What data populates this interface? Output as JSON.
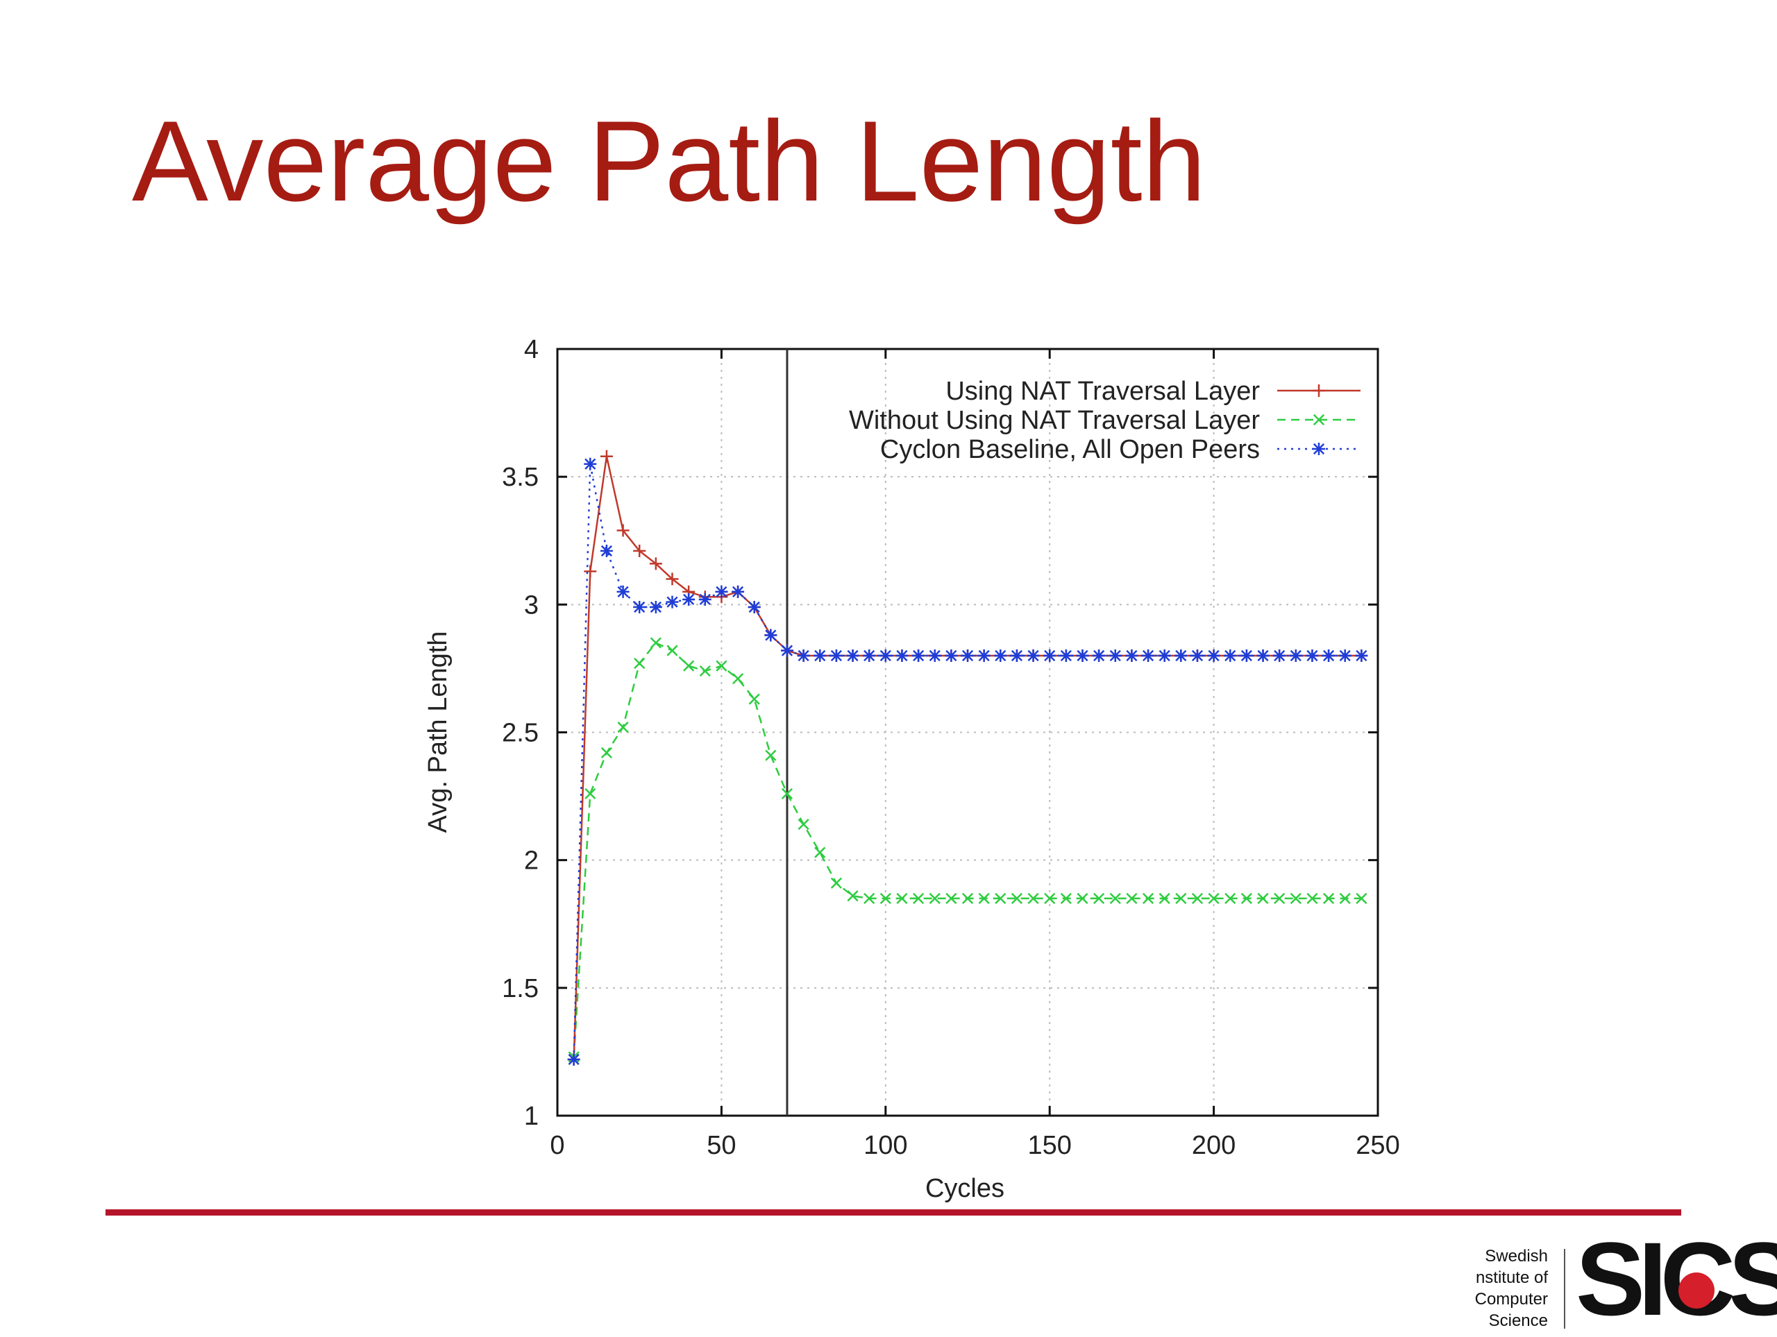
{
  "slide": {
    "title": "Average Path Length"
  },
  "organization": {
    "lines": [
      "Swedish",
      "nstitute of",
      "Computer",
      "Science"
    ],
    "logo_text": "SICS",
    "logo_dot_color": "#d51f2a"
  },
  "colors": {
    "title": "#a51c13",
    "footer_rule": "#b5152b"
  },
  "chart_data": {
    "type": "line",
    "title": "",
    "xlabel": "Cycles",
    "ylabel": "Avg. Path Length",
    "xlim": [
      0,
      250
    ],
    "ylim": [
      1,
      4
    ],
    "xticks": [
      0,
      50,
      100,
      150,
      200,
      250
    ],
    "yticks": [
      1,
      1.5,
      2,
      2.5,
      3,
      3.5,
      4
    ],
    "ytick_labels": [
      "1",
      "1.5",
      "2",
      "2.5",
      "3",
      "3.5",
      "4"
    ],
    "grid": true,
    "legend_position": "top-right",
    "vertical_marker_x": 70,
    "x": [
      5,
      10,
      15,
      20,
      25,
      30,
      35,
      40,
      45,
      50,
      55,
      60,
      65,
      70,
      75,
      80,
      85,
      90,
      95,
      100,
      105,
      110,
      115,
      120,
      125,
      130,
      135,
      140,
      145,
      150,
      155,
      160,
      165,
      170,
      175,
      180,
      185,
      190,
      195,
      200,
      205,
      210,
      215,
      220,
      225,
      230,
      235,
      240,
      245
    ],
    "series": [
      {
        "name": "Using NAT Traversal Layer",
        "color": "#c0392b",
        "dash": "solid",
        "marker": "plus",
        "values": [
          1.22,
          3.13,
          3.58,
          3.29,
          3.21,
          3.16,
          3.1,
          3.05,
          3.03,
          3.03,
          3.05,
          2.99,
          2.88,
          2.82,
          2.8,
          2.8,
          2.8,
          2.8,
          2.8,
          2.8,
          2.8,
          2.8,
          2.8,
          2.8,
          2.8,
          2.8,
          2.8,
          2.8,
          2.8,
          2.8,
          2.8,
          2.8,
          2.8,
          2.8,
          2.8,
          2.8,
          2.8,
          2.8,
          2.8,
          2.8,
          2.8,
          2.8,
          2.8,
          2.8,
          2.8,
          2.8,
          2.8,
          2.8,
          2.8
        ]
      },
      {
        "name": "Without Using NAT Traversal Layer",
        "color": "#2ecc40",
        "dash": "dashed",
        "marker": "x",
        "values": [
          1.23,
          2.26,
          2.42,
          2.52,
          2.77,
          2.85,
          2.82,
          2.76,
          2.74,
          2.76,
          2.71,
          2.63,
          2.41,
          2.26,
          2.14,
          2.03,
          1.91,
          1.86,
          1.85,
          1.85,
          1.85,
          1.85,
          1.85,
          1.85,
          1.85,
          1.85,
          1.85,
          1.85,
          1.85,
          1.85,
          1.85,
          1.85,
          1.85,
          1.85,
          1.85,
          1.85,
          1.85,
          1.85,
          1.85,
          1.85,
          1.85,
          1.85,
          1.85,
          1.85,
          1.85,
          1.85,
          1.85,
          1.85,
          1.85
        ]
      },
      {
        "name": "Cyclon Baseline, All Open Peers",
        "color": "#1f3dd6",
        "dash": "dotted",
        "marker": "star",
        "values": [
          1.22,
          3.55,
          3.21,
          3.05,
          2.99,
          2.99,
          3.01,
          3.02,
          3.02,
          3.05,
          3.05,
          2.99,
          2.88,
          2.82,
          2.8,
          2.8,
          2.8,
          2.8,
          2.8,
          2.8,
          2.8,
          2.8,
          2.8,
          2.8,
          2.8,
          2.8,
          2.8,
          2.8,
          2.8,
          2.8,
          2.8,
          2.8,
          2.8,
          2.8,
          2.8,
          2.8,
          2.8,
          2.8,
          2.8,
          2.8,
          2.8,
          2.8,
          2.8,
          2.8,
          2.8,
          2.8,
          2.8,
          2.8,
          2.8
        ]
      }
    ]
  }
}
